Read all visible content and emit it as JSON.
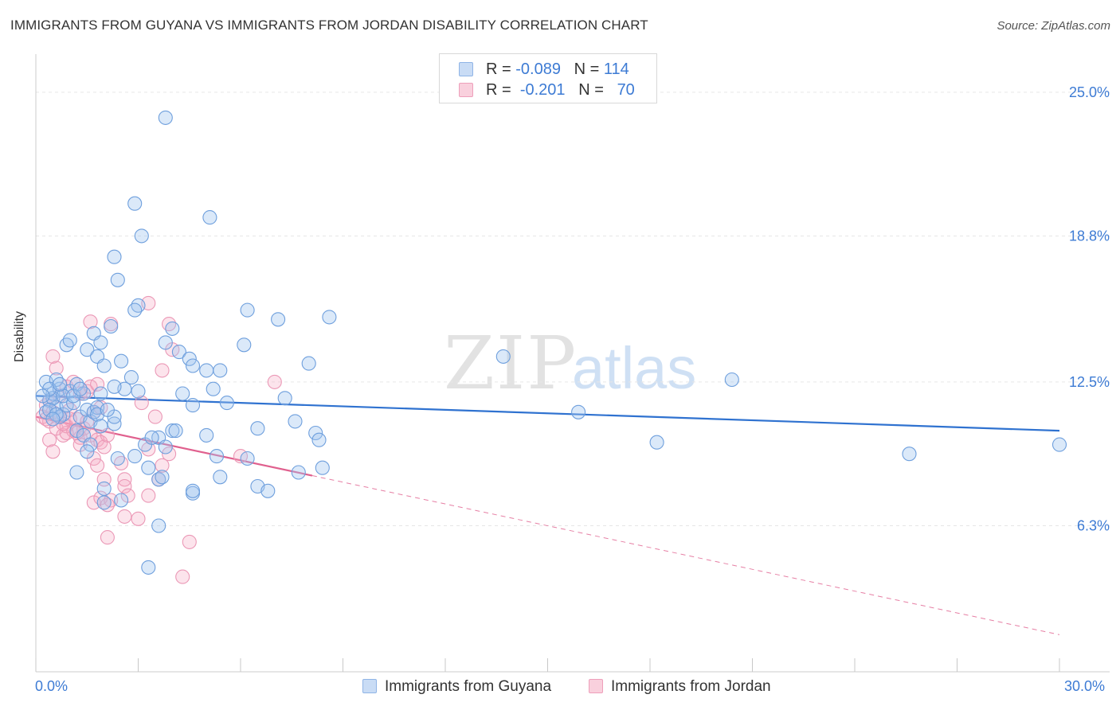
{
  "header": {
    "title": "IMMIGRANTS FROM GUYANA VS IMMIGRANTS FROM JORDAN DISABILITY CORRELATION CHART",
    "source": "Source: ZipAtlas.com"
  },
  "watermark": {
    "zip": "ZIP",
    "atlas": "atlas"
  },
  "legend": {
    "rows": [
      {
        "r_label": "R =",
        "r_value": "-0.089",
        "n_label": "N =",
        "n_value": "114",
        "color": "#a9c8f0"
      },
      {
        "r_label": "R =",
        "r_value": "-0.201",
        "n_label": "N =",
        "n_value": "70",
        "color": "#f5b8cb"
      }
    ]
  },
  "chart_data": {
    "type": "scatter",
    "title": "IMMIGRANTS FROM GUYANA VS IMMIGRANTS FROM JORDAN DISABILITY CORRELATION CHART",
    "ylabel": "Disability",
    "xlabel": "",
    "xlim": [
      0,
      30
    ],
    "ylim": [
      0,
      26.3
    ],
    "x_tick_labels": [
      "0.0%",
      "30.0%"
    ],
    "y_ticks": [
      6.3,
      12.5,
      18.8,
      25.0
    ],
    "y_tick_labels": [
      "6.3%",
      "12.5%",
      "18.8%",
      "25.0%"
    ],
    "grid": "horizontal dashed",
    "legend_position": "top-center and bottom",
    "series": [
      {
        "name": "Immigrants from Guyana",
        "color": "#6fa0e0",
        "trend": {
          "x0": 0.0,
          "y0": 11.9,
          "x1": 30.0,
          "y1": 10.4,
          "solid_until": 30.0,
          "line_color": "#2f72d0"
        },
        "points": [
          [
            0.3,
            12.5
          ],
          [
            0.4,
            11.7
          ],
          [
            0.5,
            12.0
          ],
          [
            0.6,
            11.4
          ],
          [
            0.7,
            12.2
          ],
          [
            0.8,
            11.1
          ],
          [
            0.9,
            11.5
          ],
          [
            1.0,
            12.1
          ],
          [
            0.3,
            11.2
          ],
          [
            0.5,
            11.8
          ],
          [
            0.6,
            12.6
          ],
          [
            0.8,
            11.9
          ],
          [
            1.1,
            11.6
          ],
          [
            1.2,
            12.4
          ],
          [
            1.3,
            11.0
          ],
          [
            1.4,
            12.0
          ],
          [
            1.5,
            11.3
          ],
          [
            1.6,
            10.8
          ],
          [
            1.7,
            11.2
          ],
          [
            1.8,
            11.4
          ],
          [
            1.9,
            12.0
          ],
          [
            0.9,
            14.1
          ],
          [
            1.0,
            14.3
          ],
          [
            1.5,
            13.9
          ],
          [
            1.7,
            14.6
          ],
          [
            1.8,
            13.6
          ],
          [
            1.9,
            14.2
          ],
          [
            2.0,
            13.2
          ],
          [
            2.2,
            14.9
          ],
          [
            2.5,
            13.4
          ],
          [
            2.6,
            12.2
          ],
          [
            2.8,
            12.7
          ],
          [
            3.0,
            12.1
          ],
          [
            2.4,
            16.9
          ],
          [
            2.3,
            17.9
          ],
          [
            2.9,
            20.2
          ],
          [
            3.1,
            18.8
          ],
          [
            3.0,
            15.8
          ],
          [
            2.9,
            15.6
          ],
          [
            3.8,
            23.9
          ],
          [
            5.1,
            19.6
          ],
          [
            3.8,
            14.2
          ],
          [
            4.0,
            14.8
          ],
          [
            4.2,
            13.8
          ],
          [
            4.5,
            13.5
          ],
          [
            4.6,
            13.2
          ],
          [
            5.0,
            13.0
          ],
          [
            4.3,
            12.0
          ],
          [
            4.6,
            11.5
          ],
          [
            5.2,
            12.2
          ],
          [
            5.6,
            11.6
          ],
          [
            5.4,
            13.0
          ],
          [
            6.2,
            15.6
          ],
          [
            6.1,
            14.1
          ],
          [
            7.1,
            15.2
          ],
          [
            8.6,
            15.3
          ],
          [
            8.0,
            13.3
          ],
          [
            7.3,
            11.8
          ],
          [
            6.5,
            10.5
          ],
          [
            7.6,
            10.8
          ],
          [
            8.2,
            10.3
          ],
          [
            8.3,
            10.0
          ],
          [
            0.7,
            11.0
          ],
          [
            1.2,
            10.4
          ],
          [
            1.4,
            10.2
          ],
          [
            1.6,
            9.8
          ],
          [
            1.5,
            9.5
          ],
          [
            2.3,
            10.7
          ],
          [
            2.3,
            11.0
          ],
          [
            2.4,
            9.2
          ],
          [
            2.9,
            9.3
          ],
          [
            3.2,
            9.8
          ],
          [
            3.6,
            10.1
          ],
          [
            3.4,
            10.1
          ],
          [
            4.0,
            10.4
          ],
          [
            4.1,
            10.4
          ],
          [
            5.0,
            10.2
          ],
          [
            3.8,
            9.7
          ],
          [
            3.3,
            8.8
          ],
          [
            3.6,
            8.3
          ],
          [
            3.7,
            8.4
          ],
          [
            4.6,
            7.7
          ],
          [
            4.6,
            7.8
          ],
          [
            5.4,
            8.4
          ],
          [
            5.3,
            9.3
          ],
          [
            6.2,
            9.2
          ],
          [
            6.5,
            8.0
          ],
          [
            6.8,
            7.8
          ],
          [
            7.7,
            8.6
          ],
          [
            8.4,
            8.8
          ],
          [
            1.2,
            8.6
          ],
          [
            2.0,
            7.9
          ],
          [
            2.0,
            7.3
          ],
          [
            2.5,
            7.4
          ],
          [
            3.6,
            6.3
          ],
          [
            3.3,
            4.5
          ],
          [
            13.7,
            13.6
          ],
          [
            15.9,
            11.2
          ],
          [
            20.4,
            12.6
          ],
          [
            18.2,
            9.9
          ],
          [
            25.6,
            9.4
          ],
          [
            30.0,
            9.8
          ],
          [
            0.4,
            11.3
          ],
          [
            0.6,
            11.1
          ],
          [
            0.5,
            10.9
          ],
          [
            0.4,
            12.2
          ],
          [
            0.7,
            12.4
          ],
          [
            1.1,
            11.9
          ],
          [
            1.3,
            12.2
          ],
          [
            1.8,
            11.1
          ],
          [
            1.9,
            10.6
          ],
          [
            2.1,
            11.3
          ],
          [
            2.3,
            12.3
          ],
          [
            0.2,
            11.9
          ]
        ]
      },
      {
        "name": "Immigrants from Jordan",
        "color": "#f093b4",
        "trend": {
          "x0": 0.0,
          "y0": 11.0,
          "x1": 30.0,
          "y1": 1.6,
          "solid_until": 8.1,
          "line_color": "#e0608e"
        },
        "points": [
          [
            0.2,
            11.0
          ],
          [
            0.3,
            11.5
          ],
          [
            0.4,
            10.8
          ],
          [
            0.5,
            11.2
          ],
          [
            0.6,
            10.5
          ],
          [
            0.7,
            11.0
          ],
          [
            0.8,
            10.2
          ],
          [
            0.9,
            10.6
          ],
          [
            1.0,
            11.3
          ],
          [
            1.1,
            10.4
          ],
          [
            1.2,
            10.9
          ],
          [
            1.3,
            10.1
          ],
          [
            1.4,
            10.5
          ],
          [
            1.5,
            10.8
          ],
          [
            1.6,
            10.2
          ],
          [
            1.7,
            11.2
          ],
          [
            1.8,
            10.0
          ],
          [
            1.9,
            11.4
          ],
          [
            0.5,
            13.6
          ],
          [
            0.6,
            13.1
          ],
          [
            0.9,
            12.3
          ],
          [
            1.1,
            12.5
          ],
          [
            1.3,
            12.0
          ],
          [
            1.5,
            12.1
          ],
          [
            1.6,
            12.3
          ],
          [
            1.8,
            12.4
          ],
          [
            1.6,
            15.1
          ],
          [
            2.2,
            15.0
          ],
          [
            3.3,
            15.9
          ],
          [
            3.9,
            15.0
          ],
          [
            4.0,
            13.9
          ],
          [
            3.7,
            13.0
          ],
          [
            3.1,
            11.6
          ],
          [
            3.5,
            11.0
          ],
          [
            3.9,
            9.4
          ],
          [
            3.7,
            8.9
          ],
          [
            3.3,
            9.6
          ],
          [
            7.0,
            12.5
          ],
          [
            6.0,
            9.3
          ],
          [
            0.4,
            10.0
          ],
          [
            0.5,
            9.5
          ],
          [
            0.9,
            10.3
          ],
          [
            1.0,
            10.9
          ],
          [
            1.3,
            9.8
          ],
          [
            1.7,
            9.2
          ],
          [
            1.8,
            8.9
          ],
          [
            1.9,
            9.9
          ],
          [
            2.0,
            9.7
          ],
          [
            2.1,
            10.2
          ],
          [
            2.5,
            9.0
          ],
          [
            2.6,
            8.3
          ],
          [
            2.6,
            8.0
          ],
          [
            2.7,
            7.6
          ],
          [
            3.3,
            7.6
          ],
          [
            3.6,
            8.3
          ],
          [
            1.7,
            7.3
          ],
          [
            1.9,
            7.5
          ],
          [
            2.2,
            7.4
          ],
          [
            2.6,
            6.7
          ],
          [
            2.0,
            8.3
          ],
          [
            2.1,
            7.2
          ],
          [
            3.0,
            6.6
          ],
          [
            2.1,
            5.8
          ],
          [
            4.5,
            5.6
          ],
          [
            4.3,
            4.1
          ],
          [
            0.3,
            10.9
          ],
          [
            0.4,
            11.7
          ],
          [
            0.7,
            11.9
          ],
          [
            0.8,
            10.7
          ],
          [
            1.2,
            10.3
          ]
        ]
      }
    ]
  },
  "bottom_legend": {
    "items": [
      {
        "label": "Immigrants from Guyana"
      },
      {
        "label": "Immigrants from Jordan"
      }
    ]
  }
}
